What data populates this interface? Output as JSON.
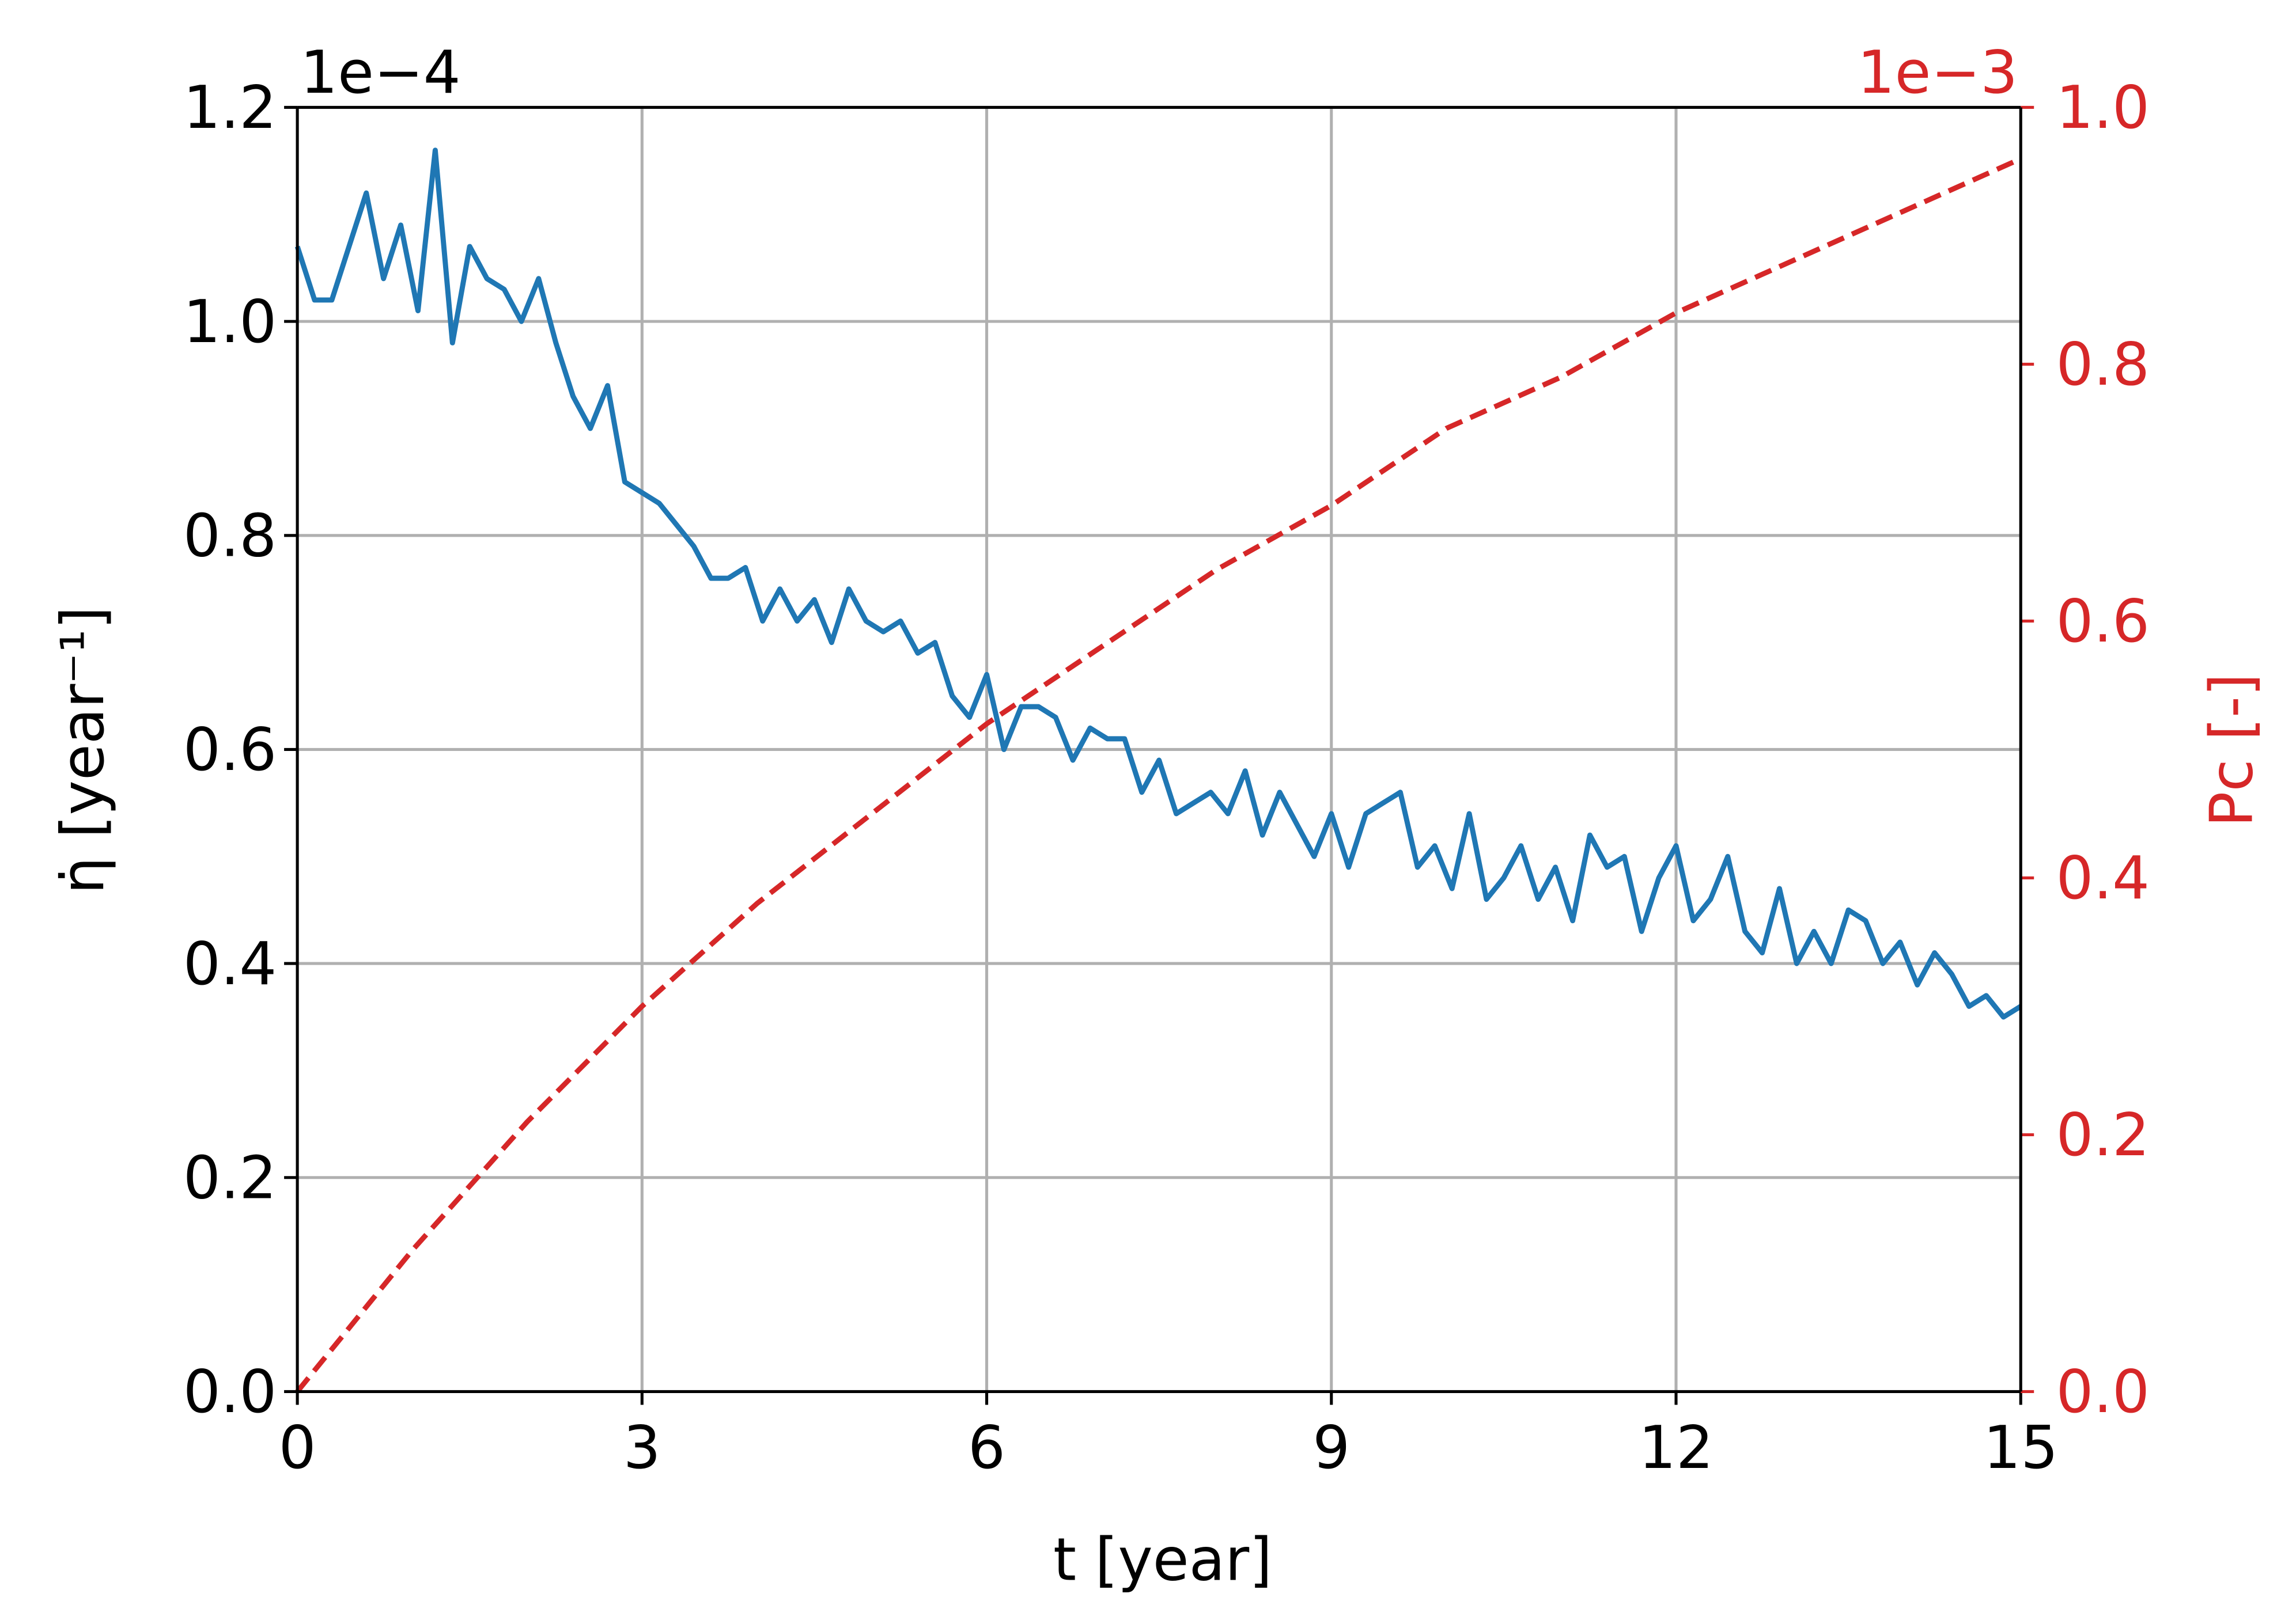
{
  "chart_data": {
    "type": "line",
    "xlabel": "t [year]",
    "ylabel": "η̇ [year⁻¹]",
    "y2label": "Pc [-]",
    "y_offset_label": "1e−4",
    "y2_offset_label": "1e−3",
    "xlim": [
      0,
      15
    ],
    "xticks": [
      0,
      3,
      6,
      9,
      12,
      15
    ],
    "ylim": [
      0,
      1.2
    ],
    "yticks": [
      {
        "value": 0,
        "label": "0.0"
      },
      {
        "value": 0.2,
        "label": "0.2"
      },
      {
        "value": 0.4,
        "label": "0.4"
      },
      {
        "value": 0.6,
        "label": "0.6"
      },
      {
        "value": 0.8,
        "label": "0.8"
      },
      {
        "value": 1.0,
        "label": "1.0"
      },
      {
        "value": 1.2,
        "label": "1.2"
      }
    ],
    "y2lim": [
      0,
      1.0
    ],
    "y2ticks": [
      {
        "value": 0,
        "label": "0.0"
      },
      {
        "value": 0.2,
        "label": "0.2"
      },
      {
        "value": 0.4,
        "label": "0.4"
      },
      {
        "value": 0.6,
        "label": "0.6"
      },
      {
        "value": 0.8,
        "label": "0.8"
      },
      {
        "value": 1.0,
        "label": "1.0"
      }
    ],
    "grid": true,
    "y2color": "#d62728",
    "series": [
      {
        "color": "#1f77b4",
        "axis": "y",
        "dashed": false,
        "x": [
          0,
          0.15,
          0.3,
          0.45,
          0.6,
          0.75,
          0.9,
          1.05,
          1.2,
          1.35,
          1.5,
          1.65,
          1.8,
          1.95,
          2.1,
          2.25,
          2.4,
          2.55,
          2.7,
          2.85,
          3.0,
          3.15,
          3.3,
          3.45,
          3.6,
          3.75,
          3.9,
          4.05,
          4.2,
          4.35,
          4.5,
          4.65,
          4.8,
          4.95,
          5.1,
          5.25,
          5.4,
          5.55,
          5.7,
          5.85,
          6.0,
          6.15,
          6.3,
          6.45,
          6.6,
          6.75,
          6.9,
          7.05,
          7.2,
          7.35,
          7.5,
          7.65,
          7.8,
          7.95,
          8.1,
          8.25,
          8.4,
          8.55,
          8.7,
          8.85,
          9.0,
          9.15,
          9.3,
          9.45,
          9.6,
          9.75,
          9.9,
          10.05,
          10.2,
          10.35,
          10.5,
          10.65,
          10.8,
          10.95,
          11.1,
          11.25,
          11.4,
          11.55,
          11.7,
          11.85,
          12.0,
          12.15,
          12.3,
          12.45,
          12.6,
          12.75,
          12.9,
          13.05,
          13.2,
          13.35,
          13.5,
          13.65,
          13.8,
          13.95,
          14.1,
          14.25,
          14.4,
          14.55,
          14.7,
          14.85,
          15.0
        ],
        "values": [
          1.07,
          1.02,
          1.02,
          1.07,
          1.12,
          1.04,
          1.09,
          1.01,
          1.16,
          0.98,
          1.07,
          1.04,
          1.03,
          1.0,
          1.04,
          0.98,
          0.93,
          0.9,
          0.94,
          0.85,
          0.84,
          0.83,
          0.81,
          0.79,
          0.76,
          0.76,
          0.77,
          0.72,
          0.75,
          0.72,
          0.74,
          0.7,
          0.75,
          0.72,
          0.71,
          0.72,
          0.69,
          0.7,
          0.65,
          0.63,
          0.67,
          0.6,
          0.64,
          0.64,
          0.63,
          0.59,
          0.62,
          0.61,
          0.61,
          0.56,
          0.59,
          0.54,
          0.55,
          0.56,
          0.54,
          0.58,
          0.52,
          0.56,
          0.53,
          0.5,
          0.54,
          0.49,
          0.54,
          0.55,
          0.56,
          0.49,
          0.51,
          0.47,
          0.54,
          0.46,
          0.48,
          0.51,
          0.46,
          0.49,
          0.44,
          0.52,
          0.49,
          0.5,
          0.43,
          0.48,
          0.51,
          0.44,
          0.46,
          0.5,
          0.43,
          0.41,
          0.47,
          0.4,
          0.43,
          0.4,
          0.45,
          0.44,
          0.4,
          0.42,
          0.38,
          0.41,
          0.39,
          0.36,
          0.37,
          0.35,
          0.36
        ]
      },
      {
        "color": "#d62728",
        "axis": "y2",
        "dashed": true,
        "x": [
          0,
          1,
          2,
          3,
          4,
          5,
          6,
          7,
          8,
          9,
          10,
          11,
          12,
          13,
          14,
          15
        ],
        "values": [
          0,
          0.11,
          0.21,
          0.3,
          0.38,
          0.45,
          0.52,
          0.58,
          0.64,
          0.69,
          0.75,
          0.79,
          0.84,
          0.88,
          0.92,
          0.96
        ]
      }
    ]
  }
}
